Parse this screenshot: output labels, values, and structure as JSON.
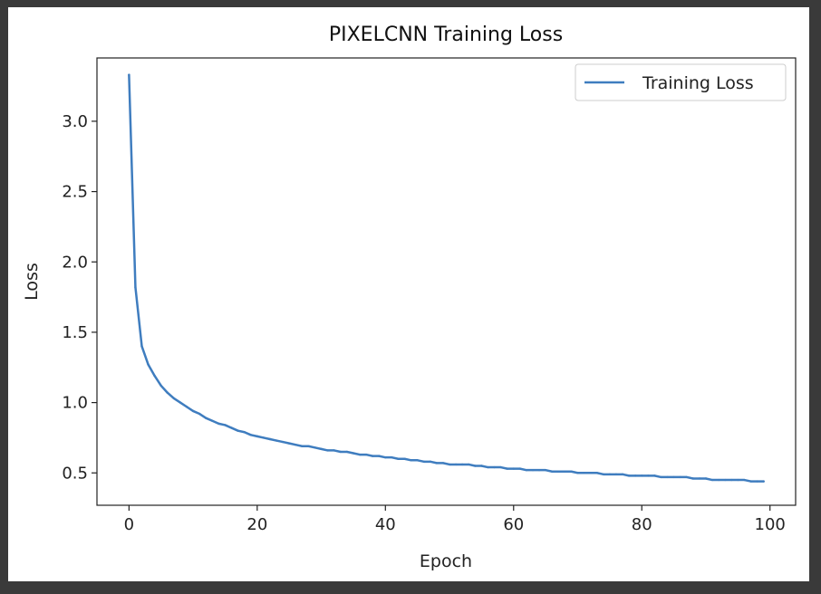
{
  "chart_data": {
    "type": "line",
    "title": "PIXELCNN Training Loss",
    "xlabel": "Epoch",
    "ylabel": "Loss",
    "xlim": [
      -5,
      104
    ],
    "ylim": [
      0.27,
      3.45
    ],
    "xticks": [
      0,
      20,
      40,
      60,
      80,
      100
    ],
    "xtick_labels": [
      "0",
      "20",
      "40",
      "60",
      "80",
      "100"
    ],
    "yticks": [
      0.5,
      1.0,
      1.5,
      2.0,
      2.5,
      3.0
    ],
    "ytick_labels": [
      "0.5",
      "1.0",
      "1.5",
      "2.0",
      "2.5",
      "3.0"
    ],
    "grid": false,
    "legend_position": "top-right",
    "series": [
      {
        "name": "Training Loss",
        "color": "#3f7dbf",
        "x": [
          0,
          1,
          2,
          3,
          4,
          5,
          6,
          7,
          8,
          9,
          10,
          11,
          12,
          13,
          14,
          15,
          16,
          17,
          18,
          19,
          20,
          21,
          22,
          23,
          24,
          25,
          26,
          27,
          28,
          29,
          30,
          31,
          32,
          33,
          34,
          35,
          36,
          37,
          38,
          39,
          40,
          41,
          42,
          43,
          44,
          45,
          46,
          47,
          48,
          49,
          50,
          51,
          52,
          53,
          54,
          55,
          56,
          57,
          58,
          59,
          60,
          61,
          62,
          63,
          64,
          65,
          66,
          67,
          68,
          69,
          70,
          71,
          72,
          73,
          74,
          75,
          76,
          77,
          78,
          79,
          80,
          81,
          82,
          83,
          84,
          85,
          86,
          87,
          88,
          89,
          90,
          91,
          92,
          93,
          94,
          95,
          96,
          97,
          98,
          99
        ],
        "y": [
          3.33,
          1.82,
          1.4,
          1.27,
          1.19,
          1.12,
          1.07,
          1.03,
          1.0,
          0.97,
          0.94,
          0.92,
          0.89,
          0.87,
          0.85,
          0.84,
          0.82,
          0.8,
          0.79,
          0.77,
          0.76,
          0.75,
          0.74,
          0.73,
          0.72,
          0.71,
          0.7,
          0.69,
          0.69,
          0.68,
          0.67,
          0.66,
          0.66,
          0.65,
          0.65,
          0.64,
          0.63,
          0.63,
          0.62,
          0.62,
          0.61,
          0.61,
          0.6,
          0.6,
          0.59,
          0.59,
          0.58,
          0.58,
          0.57,
          0.57,
          0.56,
          0.56,
          0.56,
          0.56,
          0.55,
          0.55,
          0.54,
          0.54,
          0.54,
          0.53,
          0.53,
          0.53,
          0.52,
          0.52,
          0.52,
          0.52,
          0.51,
          0.51,
          0.51,
          0.51,
          0.5,
          0.5,
          0.5,
          0.5,
          0.49,
          0.49,
          0.49,
          0.49,
          0.48,
          0.48,
          0.48,
          0.48,
          0.48,
          0.47,
          0.47,
          0.47,
          0.47,
          0.47,
          0.46,
          0.46,
          0.46,
          0.45,
          0.45,
          0.45,
          0.45,
          0.45,
          0.45,
          0.44,
          0.44,
          0.44
        ]
      }
    ]
  }
}
